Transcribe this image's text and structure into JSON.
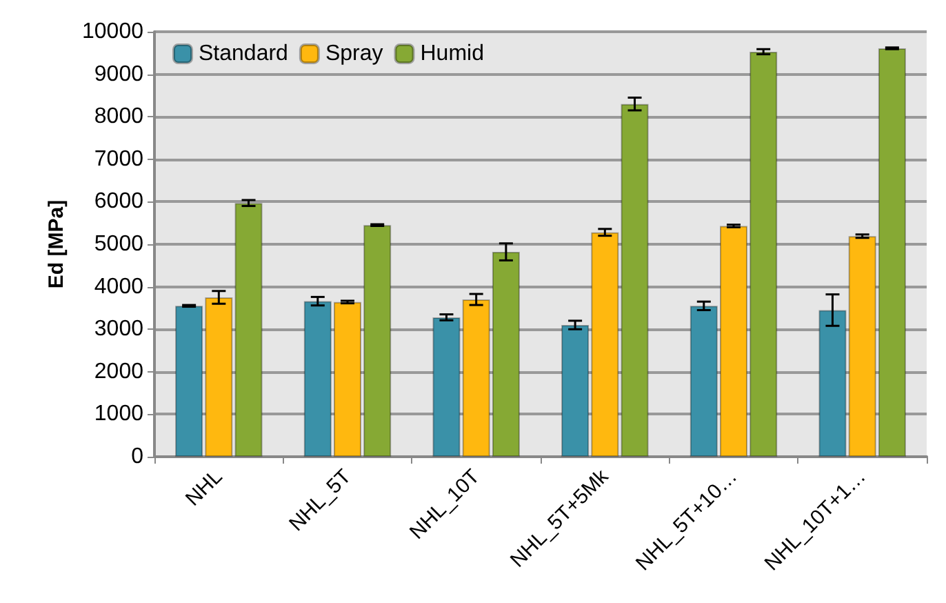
{
  "chart_data": {
    "type": "bar",
    "ylabel": "Ed [MPa]",
    "categories": [
      "NHL",
      "NHL_5T",
      "NHL_10T",
      "NHL_5T+5Mk",
      "NHL_5T+10…",
      "NHL_10T+1…"
    ],
    "series": [
      {
        "name": "Standard",
        "color": "#3a91a8",
        "values": [
          3550,
          3660,
          3280,
          3100,
          3550,
          3450
        ],
        "errors": [
          20,
          100,
          70,
          100,
          100,
          370
        ]
      },
      {
        "name": "Spray",
        "color": "#ffb80f",
        "values": [
          3750,
          3640,
          3700,
          5280,
          5430,
          5190
        ],
        "errors": [
          150,
          30,
          130,
          80,
          30,
          40
        ]
      },
      {
        "name": "Humid",
        "color": "#86a934",
        "values": [
          5970,
          5450,
          4820,
          8300,
          9530,
          9610
        ],
        "errors": [
          70,
          20,
          200,
          150,
          60,
          20
        ]
      }
    ],
    "ylim": [
      0,
      10000
    ],
    "yticks": [
      0,
      1000,
      2000,
      3000,
      4000,
      5000,
      6000,
      7000,
      8000,
      9000,
      10000
    ],
    "grid": "y",
    "legend": "top left"
  }
}
